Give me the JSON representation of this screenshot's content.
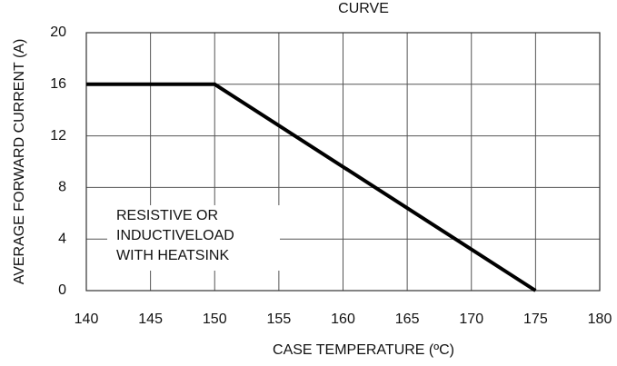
{
  "chart_data": {
    "type": "line",
    "title": "CURVE",
    "x": [
      140,
      150,
      175
    ],
    "series": [
      {
        "color": "#000000",
        "values": [
          16,
          16,
          0
        ]
      }
    ],
    "xlabel": "CASE TEMPERATURE (ºC)",
    "ylabel": "AVERAGE FORWARD CURRENT (A)",
    "annotation": [
      "RESISTIVE OR",
      "INDUCTIVELOAD",
      "WITH HEATSINK"
    ],
    "xlim": [
      140,
      180
    ],
    "xticks": [
      140,
      145,
      150,
      155,
      160,
      165,
      170,
      175,
      180
    ],
    "ylim": [
      0,
      20
    ],
    "yticks": [
      0,
      4,
      8,
      12,
      16,
      20
    ],
    "grid": true
  }
}
